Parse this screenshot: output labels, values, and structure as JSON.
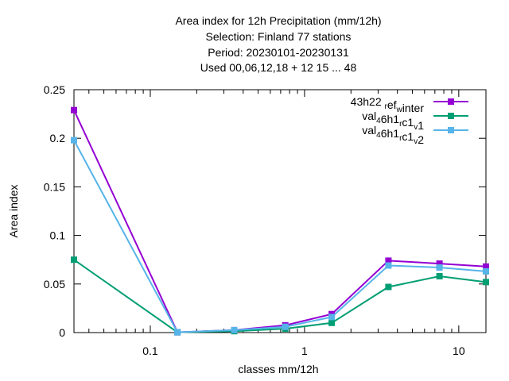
{
  "chart_data": {
    "type": "line",
    "title_lines": [
      "Area index  for 12h Precipitation (mm/12h)",
      "Selection: Finland     77 stations",
      "Period: 20230101-20230131",
      "Used  00,06,12,18  + 12 15 ... 48"
    ],
    "xlabel": "classes mm/12h",
    "ylabel": "Area index",
    "x_scale": "log",
    "xlim": [
      0.032,
      15
    ],
    "ylim": [
      0,
      0.25
    ],
    "x_ticks": [
      {
        "value": 0.1,
        "label": "0.1"
      },
      {
        "value": 1,
        "label": "1"
      },
      {
        "value": 10,
        "label": "10"
      }
    ],
    "y_ticks": [
      {
        "value": 0,
        "label": "0"
      },
      {
        "value": 0.05,
        "label": "0.05"
      },
      {
        "value": 0.1,
        "label": "0.1"
      },
      {
        "value": 0.15,
        "label": "0.15"
      },
      {
        "value": 0.2,
        "label": "0.2"
      },
      {
        "value": 0.25,
        "label": "0.25"
      }
    ],
    "grid": false,
    "legend_position": "top-right",
    "x": [
      0.032,
      0.15,
      0.35,
      0.75,
      1.5,
      3.5,
      7.5,
      15
    ],
    "series": [
      {
        "name": "43h22_ref_winter",
        "legend_parts": [
          [
            "43h22 ",
            ""
          ],
          [
            "r",
            "sub"
          ],
          [
            "ef",
            ""
          ],
          [
            "w",
            "sub"
          ],
          [
            "inter",
            ""
          ]
        ],
        "color": "#9400d3",
        "values": [
          0.229,
          0.0003,
          0.0025,
          0.0075,
          0.019,
          0.074,
          0.071,
          0.068
        ]
      },
      {
        "name": "val_46h1_rc1_v1",
        "legend_parts": [
          [
            "val",
            ""
          ],
          [
            "4",
            "sub"
          ],
          [
            "6h1",
            ""
          ],
          [
            "r",
            "sub"
          ],
          [
            "c1",
            ""
          ],
          [
            "v",
            "sub"
          ],
          [
            "1",
            ""
          ]
        ],
        "color": "#009e73",
        "values": [
          0.075,
          0.0003,
          0.0015,
          0.004,
          0.01,
          0.047,
          0.058,
          0.052
        ]
      },
      {
        "name": "val_46h1_rc1_v2",
        "legend_parts": [
          [
            "val",
            ""
          ],
          [
            "4",
            "sub"
          ],
          [
            "6h1",
            ""
          ],
          [
            "r",
            "sub"
          ],
          [
            "c1",
            ""
          ],
          [
            "v",
            "sub"
          ],
          [
            "2",
            ""
          ]
        ],
        "color": "#56b4e9",
        "values": [
          0.198,
          0.0003,
          0.0025,
          0.006,
          0.016,
          0.069,
          0.067,
          0.063
        ]
      }
    ]
  }
}
